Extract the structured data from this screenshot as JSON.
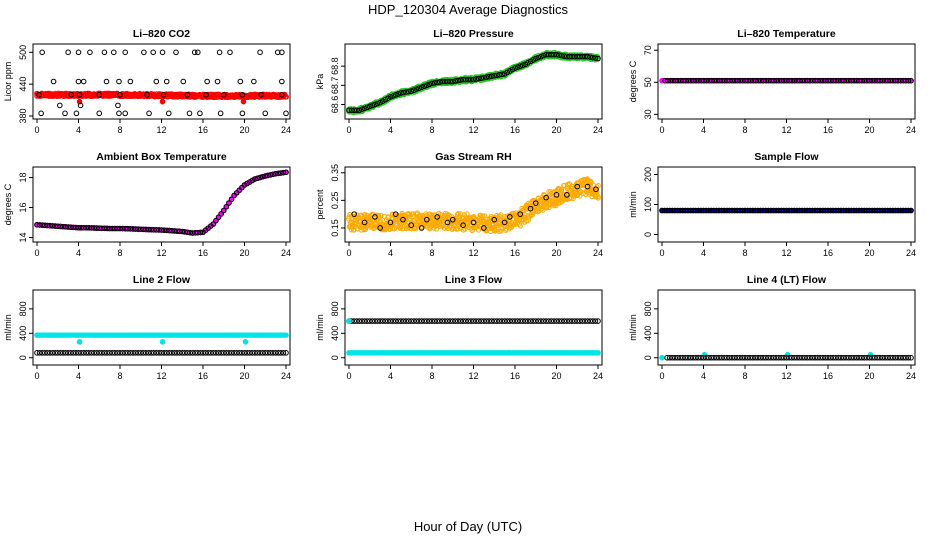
{
  "figure": {
    "title": "HDP_120304  Average Diagnostics",
    "xlabel": "Hour of Day (UTC)"
  },
  "chart_data": [
    {
      "type": "scatter",
      "title": "Li–820 CO2",
      "ylabel": "Licor ppm",
      "xlim": [
        0,
        24
      ],
      "ylim": [
        380,
        510
      ],
      "xticks": [
        0,
        4,
        8,
        12,
        16,
        20,
        24
      ],
      "yticks": [
        380,
        440,
        500
      ],
      "series": [
        {
          "color": "#ff0000",
          "kind": "band",
          "x": [
            0,
            4,
            8,
            12,
            16,
            20,
            24
          ],
          "y": [
            420,
            420,
            420,
            419,
            418,
            418,
            418
          ],
          "spread": 3
        },
        {
          "color": "#ff0000",
          "kind": "points",
          "x": [
            4.1,
            12.1,
            19.9
          ],
          "y": [
            407,
            407,
            407
          ]
        },
        {
          "color": "#000000",
          "kind": "points",
          "x": [
            0.5,
            2.2,
            3,
            4,
            4.2,
            5.1,
            6.5,
            7.4,
            7.8,
            8.5,
            10.3,
            11.2,
            12.1,
            13.4,
            15.2,
            15.5,
            17.6,
            18.6,
            21.5,
            23.2,
            23.6
          ],
          "y": [
            500,
            400,
            500,
            500,
            400,
            500,
            500,
            500,
            400,
            500,
            500,
            500,
            500,
            500,
            500,
            500,
            500,
            500,
            500,
            500,
            500
          ]
        },
        {
          "color": "#000000",
          "kind": "points",
          "x": [
            1.6,
            4,
            4.5,
            6.7,
            7.9,
            9,
            11.5,
            12.5,
            14.1,
            16.4,
            17.4,
            19.6,
            20.9,
            23.6
          ],
          "y": [
            445,
            445,
            445,
            445,
            445,
            445,
            445,
            445,
            445,
            445,
            445,
            445,
            445,
            445
          ]
        },
        {
          "color": "#000000",
          "kind": "points",
          "x": [
            0.4,
            2.7,
            3.8,
            6,
            7.9,
            8.5,
            10.8,
            12.7,
            14.7,
            15.7,
            17.7,
            19.8,
            22,
            24
          ],
          "y": [
            385,
            385,
            385,
            385,
            385,
            385,
            385,
            385,
            385,
            385,
            385,
            385,
            385,
            385
          ]
        },
        {
          "color": "#000000",
          "kind": "points",
          "x": [
            0.2,
            3.3,
            4.1,
            6,
            8,
            10.6,
            12.2,
            14.5,
            16.3,
            18,
            19.8,
            21.6,
            23.6
          ],
          "y": [
            420,
            420,
            420,
            420,
            420,
            420,
            420,
            420,
            420,
            420,
            420,
            420,
            420
          ]
        }
      ]
    },
    {
      "type": "scatter",
      "title": "Li–820 Pressure",
      "ylabel": "kPa",
      "xlim": [
        0,
        24
      ],
      "ylim": [
        68.54,
        68.9
      ],
      "xticks": [
        0,
        4,
        8,
        12,
        16,
        20,
        24
      ],
      "yticks": [
        68.6,
        68.7,
        68.8
      ],
      "series": [
        {
          "color": "#22cc22",
          "kind": "band",
          "x": [
            0,
            1,
            2,
            3,
            4,
            5,
            6,
            7,
            8,
            9,
            10,
            11,
            12,
            13,
            14,
            15,
            16,
            17,
            18,
            19,
            20,
            21,
            22,
            23,
            24
          ],
          "y": [
            68.57,
            68.57,
            68.59,
            68.61,
            68.64,
            68.66,
            68.67,
            68.69,
            68.71,
            68.72,
            68.72,
            68.73,
            68.73,
            68.74,
            68.75,
            68.76,
            68.79,
            68.81,
            68.84,
            68.86,
            68.86,
            68.85,
            68.85,
            68.85,
            68.84
          ],
          "spread": 0.012
        },
        {
          "color": "#000000",
          "kind": "line-points",
          "x": [
            0,
            1,
            2,
            3,
            4,
            5,
            6,
            7,
            8,
            9,
            10,
            11,
            12,
            13,
            14,
            15,
            16,
            17,
            18,
            19,
            20,
            21,
            22,
            23,
            24
          ],
          "y": [
            68.57,
            68.57,
            68.59,
            68.61,
            68.64,
            68.66,
            68.67,
            68.69,
            68.71,
            68.72,
            68.72,
            68.73,
            68.73,
            68.74,
            68.75,
            68.76,
            68.79,
            68.81,
            68.84,
            68.86,
            68.86,
            68.85,
            68.85,
            68.85,
            68.84
          ]
        }
      ]
    },
    {
      "type": "scatter",
      "title": "Li–820 Temperature",
      "ylabel": "degrees C",
      "xlim": [
        0,
        24
      ],
      "ylim": [
        29,
        72
      ],
      "xticks": [
        0,
        4,
        8,
        12,
        16,
        20,
        24
      ],
      "yticks": [
        30,
        50,
        70
      ],
      "series": [
        {
          "color": "#ff00ff",
          "kind": "line-points",
          "x": [
            0,
            24
          ],
          "y": [
            51,
            51
          ]
        },
        {
          "color": "#000000",
          "kind": "line-points",
          "x": [
            0.3,
            24
          ],
          "y": [
            51,
            51
          ]
        }
      ]
    },
    {
      "type": "scatter",
      "title": "Ambient Box Temperature",
      "ylabel": "degrees C",
      "xlim": [
        0,
        24
      ],
      "ylim": [
        13.9,
        18.5
      ],
      "xticks": [
        0,
        4,
        8,
        12,
        16,
        20,
        24
      ],
      "yticks": [
        14,
        16,
        18
      ],
      "series": [
        {
          "color": "#ff00ff",
          "kind": "line-points",
          "x": [
            0,
            1,
            2,
            3,
            4,
            5,
            6,
            7,
            8,
            9,
            10,
            11,
            12,
            13,
            14,
            15,
            16,
            17,
            18,
            19,
            20,
            21,
            22,
            23,
            24
          ],
          "y": [
            14.85,
            14.8,
            14.75,
            14.7,
            14.65,
            14.65,
            14.62,
            14.6,
            14.6,
            14.58,
            14.55,
            14.52,
            14.5,
            14.45,
            14.4,
            14.3,
            14.35,
            14.9,
            15.8,
            16.8,
            17.5,
            17.9,
            18.1,
            18.25,
            18.35
          ]
        },
        {
          "color": "#000000",
          "kind": "line-points",
          "x": [
            0,
            1,
            2,
            3,
            4,
            5,
            6,
            7,
            8,
            9,
            10,
            11,
            12,
            13,
            14,
            15,
            16,
            17,
            18,
            19,
            20,
            21,
            22,
            23,
            24
          ],
          "y": [
            14.85,
            14.8,
            14.75,
            14.7,
            14.65,
            14.65,
            14.62,
            14.6,
            14.6,
            14.58,
            14.55,
            14.52,
            14.5,
            14.45,
            14.4,
            14.3,
            14.35,
            14.9,
            15.8,
            16.8,
            17.5,
            17.9,
            18.1,
            18.25,
            18.35
          ]
        }
      ]
    },
    {
      "type": "scatter",
      "title": "Gas Stream RH",
      "ylabel": "percent",
      "xlim": [
        0,
        24
      ],
      "ylim": [
        0.11,
        0.36
      ],
      "xticks": [
        0,
        4,
        8,
        12,
        16,
        20,
        24
      ],
      "yticks": [
        0.15,
        0.25,
        0.35
      ],
      "series": [
        {
          "color": "#ffaa00",
          "kind": "band",
          "x": [
            0,
            2,
            4,
            6,
            8,
            10,
            12,
            14,
            16,
            17,
            18,
            19,
            20,
            21,
            22,
            23,
            24
          ],
          "y": [
            0.17,
            0.17,
            0.17,
            0.175,
            0.175,
            0.175,
            0.17,
            0.165,
            0.175,
            0.2,
            0.23,
            0.25,
            0.26,
            0.28,
            0.29,
            0.3,
            0.28
          ],
          "spread": 0.03
        },
        {
          "color": "#000000",
          "kind": "points",
          "x": [
            0.5,
            1.5,
            2.5,
            3,
            4,
            4.5,
            5.2,
            6,
            7,
            7.5,
            8.5,
            9.5,
            10,
            11,
            12,
            13,
            14,
            15,
            15.5,
            16.5,
            17.5,
            18,
            19,
            20,
            21,
            22,
            23,
            23.8
          ],
          "y": [
            0.2,
            0.17,
            0.19,
            0.15,
            0.17,
            0.2,
            0.18,
            0.16,
            0.15,
            0.18,
            0.19,
            0.17,
            0.18,
            0.16,
            0.17,
            0.15,
            0.18,
            0.17,
            0.19,
            0.2,
            0.22,
            0.24,
            0.26,
            0.27,
            0.27,
            0.3,
            0.3,
            0.29
          ]
        }
      ]
    },
    {
      "type": "scatter",
      "title": "Sample Flow",
      "ylabel": "ml/min",
      "xlim": [
        0,
        24
      ],
      "ylim": [
        -15,
        215
      ],
      "xticks": [
        0,
        4,
        8,
        12,
        16,
        20,
        24
      ],
      "yticks": [
        0,
        100,
        200
      ],
      "series": [
        {
          "color": "#0000cc",
          "kind": "line-points",
          "x": [
            0,
            24
          ],
          "y": [
            80,
            80
          ]
        },
        {
          "color": "#000000",
          "kind": "line-points",
          "x": [
            0,
            24
          ],
          "y": [
            80,
            80
          ]
        }
      ]
    },
    {
      "type": "scatter",
      "title": "Line 2 Flow",
      "ylabel": "ml/min",
      "xlim": [
        0,
        24
      ],
      "ylim": [
        -70,
        1060
      ],
      "xticks": [
        0,
        4,
        8,
        12,
        16,
        20,
        24
      ],
      "yticks": [
        0,
        400,
        800
      ],
      "series": [
        {
          "color": "#00e5e5",
          "kind": "line-points",
          "x": [
            0,
            24
          ],
          "y": [
            370,
            370
          ]
        },
        {
          "color": "#00e5e5",
          "kind": "points",
          "x": [
            4.1,
            12.1,
            20.1
          ],
          "y": [
            260,
            260,
            260
          ]
        },
        {
          "color": "#000000",
          "kind": "line-points",
          "x": [
            0,
            24
          ],
          "y": [
            80,
            80
          ]
        }
      ]
    },
    {
      "type": "scatter",
      "title": "Line 3 Flow",
      "ylabel": "ml/min",
      "xlim": [
        0,
        24
      ],
      "ylim": [
        -70,
        1060
      ],
      "xticks": [
        0,
        4,
        8,
        12,
        16,
        20,
        24
      ],
      "yticks": [
        0,
        400,
        800
      ],
      "series": [
        {
          "color": "#00e5e5",
          "kind": "line-points",
          "x": [
            0,
            24
          ],
          "y": [
            80,
            80
          ]
        },
        {
          "color": "#000000",
          "kind": "line-points",
          "x": [
            0,
            24
          ],
          "y": [
            600,
            600
          ]
        },
        {
          "color": "#00e5e5",
          "kind": "points",
          "x": [
            0
          ],
          "y": [
            600
          ]
        }
      ]
    },
    {
      "type": "scatter",
      "title": "Line 4 (LT) Flow",
      "ylabel": "ml/min",
      "xlim": [
        0,
        24
      ],
      "ylim": [
        -70,
        1060
      ],
      "xticks": [
        0,
        4,
        8,
        12,
        16,
        20,
        24
      ],
      "yticks": [
        0,
        400,
        800
      ],
      "series": [
        {
          "color": "#00e5e5",
          "kind": "points",
          "x": [
            0,
            4.1,
            12.1,
            20.1
          ],
          "y": [
            0,
            50,
            50,
            50
          ]
        },
        {
          "color": "#000000",
          "kind": "line-points",
          "x": [
            0.5,
            24
          ],
          "y": [
            0,
            0
          ]
        }
      ]
    }
  ]
}
